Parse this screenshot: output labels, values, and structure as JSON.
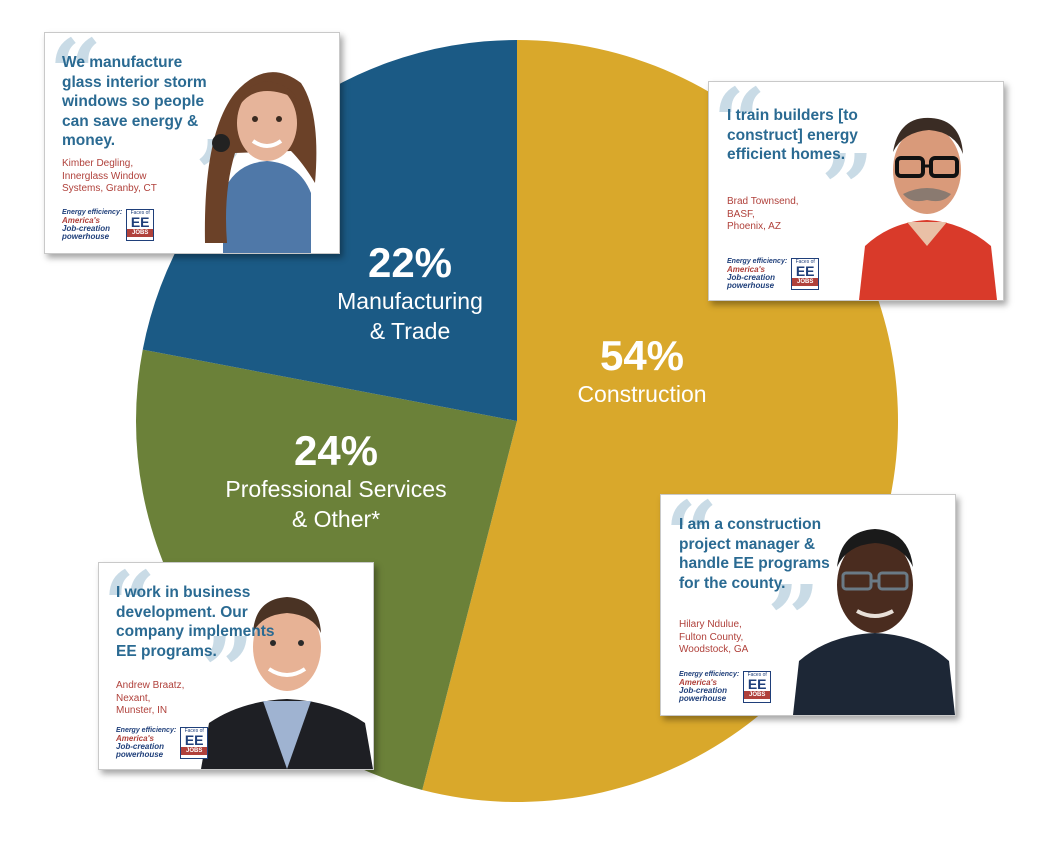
{
  "chart_data": {
    "type": "pie",
    "title": "",
    "start_angle_deg": 0,
    "direction": "clockwise",
    "slices": [
      {
        "label": "Construction",
        "value": 54,
        "percent_label": "54%",
        "color": "#d9a82b"
      },
      {
        "label": "Professional Services & Other*",
        "value": 24,
        "percent_label": "24%",
        "color": "#6b8139"
      },
      {
        "label": "Manufacturing & Trade",
        "value": 22,
        "percent_label": "22%",
        "color": "#1b5a85"
      }
    ],
    "legend": "none"
  },
  "slice_label_lines": {
    "construction": [
      "Construction"
    ],
    "professional": [
      "Professional Services",
      "& Other*"
    ],
    "manufacturing": [
      "Manufacturing",
      "& Trade"
    ]
  },
  "logo": {
    "tag_line1": "Energy efficiency:",
    "tag_line2": "America's",
    "tag_line3": "Job-creation",
    "tag_line4": "powerhouse",
    "badge_top": "Faces of",
    "badge_mid": "EE",
    "badge_bottom": "JOBS"
  },
  "cards": [
    {
      "id": "kimber",
      "quote": "We manufacture glass interior storm windows so people can save energy & money.",
      "attribution": [
        "Kimber Degling,",
        "Innerglass Window",
        "Systems, Granby, CT"
      ]
    },
    {
      "id": "brad",
      "quote": "I train builders [to construct] energy efficient homes.",
      "attribution": [
        "Brad Townsend,",
        "BASF,",
        "Phoenix, AZ"
      ]
    },
    {
      "id": "andrew",
      "quote": "I work in business development. Our company implements EE programs.",
      "attribution": [
        "Andrew Braatz,",
        "Nexant,",
        "Munster, IN"
      ]
    },
    {
      "id": "hilary",
      "quote": "I am a construction project manager & handle EE programs for the county.",
      "attribution": [
        "Hilary Ndulue,",
        "Fulton County,",
        "Woodstock, GA"
      ]
    }
  ]
}
